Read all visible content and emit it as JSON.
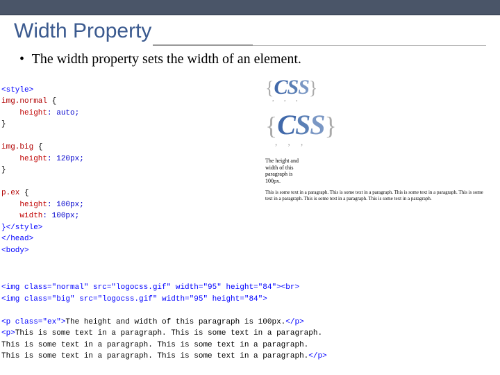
{
  "title": {
    "text": "Width Property",
    "color": "#3b5a8f",
    "fontsize": 30
  },
  "bullet": {
    "marker": "•",
    "text": "The width property sets the width of an element."
  },
  "code": {
    "style_open": "<style>",
    "sel1": "img.normal",
    "brace_open": " {",
    "rule1_prop": "    height",
    "rule1_val": ": auto;",
    "brace_close": "}",
    "sel2": "img.big",
    "rule2_prop": "    height",
    "rule2_val": ": 120px;",
    "sel3": "p.ex",
    "rule3a_prop": "    height",
    "rule3a_val": ": 100px;",
    "rule3b_prop": "    width",
    "rule3b_val": ": 100px;",
    "style_close": "}</style>",
    "head_close": "</head>",
    "body_open": "<body>",
    "img1": "<img class=\"normal\" src=\"logocss.gif\" width=\"95\" height=\"84\"><br>",
    "img2": "<img class=\"big\" src=\"logocss.gif\" width=\"95\" height=\"84\">",
    "p1": "<p class=\"ex\">The height and width of this paragraph is 100px.</p>",
    "p2a": "<p>This is some text in a paragraph. This is some text in a paragraph.",
    "p2b": "This is some text in a paragraph. This is some text in a paragraph.",
    "p2c": "This is some text in a paragraph. This is some text in a paragraph.</p>"
  },
  "render": {
    "logo_text_c": "C",
    "logo_text_s1": "S",
    "logo_text_s2": "S",
    "p_ex": "The height and width of this paragraph is 100px.",
    "p_flow": "This is some text in a paragraph. This is some text in a paragraph. This is some text in a paragraph. This is some text in a paragraph. This is some text in a paragraph. This is some text in a paragraph."
  },
  "colors": {
    "title": "#3b5a8f",
    "topbar": "#4a5568",
    "tag": "#0000ff",
    "selector": "#b00000",
    "value": "#0000cc"
  }
}
